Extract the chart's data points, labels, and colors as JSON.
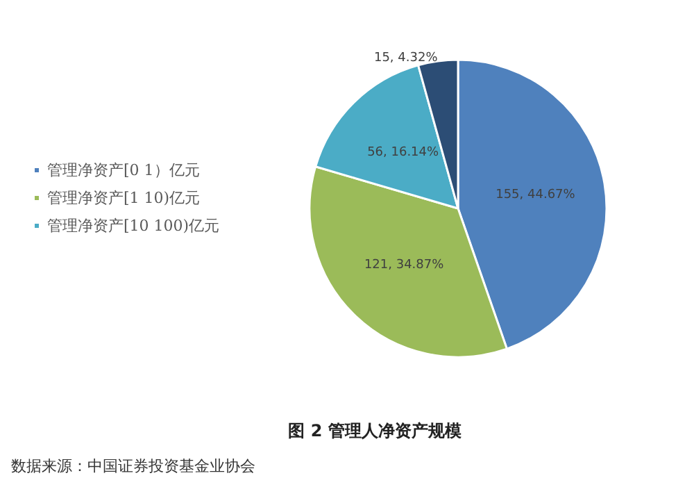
{
  "chart_data": {
    "type": "pie",
    "title": "图 2 管理人净资产规模",
    "categories": [
      "管理净资产[0 1）亿元",
      "管理净资产[1 10)亿元",
      "管理净资产[10 100)亿元",
      null
    ],
    "values": [
      155,
      121,
      56,
      15
    ],
    "value_labels": [
      "155, 44.67%",
      "121, 34.87%",
      "56, 16.14%",
      "15, 4.32%"
    ],
    "colors": [
      "#4f81bd",
      "#9bbb59",
      "#4bacc6",
      "#2c4d75"
    ],
    "legend": "left",
    "annotations": [
      "数据来源：中国证券投资基金业协会"
    ]
  }
}
